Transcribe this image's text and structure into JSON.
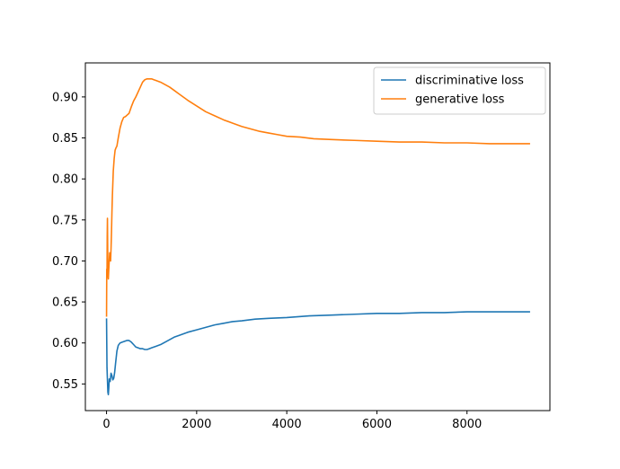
{
  "chart_data": {
    "type": "line",
    "title": "",
    "xlabel": "",
    "ylabel": "",
    "xlim": [
      -470,
      9840
    ],
    "ylim": [
      0.5175,
      0.9415
    ],
    "grid": false,
    "legend_position": "top-right",
    "x_ticks": [
      {
        "value": 0,
        "label": "0"
      },
      {
        "value": 2000,
        "label": "2000"
      },
      {
        "value": 4000,
        "label": "4000"
      },
      {
        "value": 6000,
        "label": "6000"
      },
      {
        "value": 8000,
        "label": "8000"
      }
    ],
    "y_ticks": [
      {
        "value": 0.55,
        "label": "0.55"
      },
      {
        "value": 0.6,
        "label": "0.60"
      },
      {
        "value": 0.65,
        "label": "0.65"
      },
      {
        "value": 0.7,
        "label": "0.70"
      },
      {
        "value": 0.75,
        "label": "0.75"
      },
      {
        "value": 0.8,
        "label": "0.80"
      },
      {
        "value": 0.85,
        "label": "0.85"
      },
      {
        "value": 0.9,
        "label": "0.90"
      }
    ],
    "series": [
      {
        "name": "discriminative loss",
        "color": "#1f77b4",
        "x": [
          0,
          10,
          20,
          30,
          40,
          50,
          60,
          80,
          100,
          120,
          140,
          160,
          180,
          200,
          230,
          260,
          300,
          350,
          400,
          450,
          500,
          550,
          600,
          650,
          700,
          750,
          800,
          850,
          900,
          950,
          1000,
          1100,
          1200,
          1300,
          1400,
          1500,
          1600,
          1800,
          2000,
          2200,
          2400,
          2600,
          2800,
          3000,
          3300,
          3600,
          4000,
          4500,
          5000,
          5500,
          6000,
          6500,
          7000,
          7500,
          8000,
          8500,
          9000,
          9400
        ],
        "y": [
          0.63,
          0.57,
          0.555,
          0.54,
          0.537,
          0.545,
          0.556,
          0.553,
          0.563,
          0.56,
          0.555,
          0.557,
          0.564,
          0.575,
          0.59,
          0.597,
          0.6,
          0.601,
          0.602,
          0.603,
          0.603,
          0.601,
          0.598,
          0.595,
          0.594,
          0.593,
          0.593,
          0.592,
          0.592,
          0.593,
          0.594,
          0.596,
          0.598,
          0.601,
          0.604,
          0.607,
          0.609,
          0.613,
          0.616,
          0.619,
          0.622,
          0.624,
          0.626,
          0.627,
          0.629,
          0.63,
          0.631,
          0.633,
          0.634,
          0.635,
          0.636,
          0.636,
          0.637,
          0.637,
          0.638,
          0.638,
          0.638,
          0.638
        ]
      },
      {
        "name": "generative loss",
        "color": "#ff7f0e",
        "x": [
          0,
          5,
          10,
          15,
          20,
          25,
          30,
          40,
          50,
          60,
          70,
          80,
          90,
          100,
          110,
          120,
          130,
          150,
          170,
          190,
          210,
          230,
          260,
          300,
          340,
          380,
          420,
          460,
          500,
          550,
          600,
          650,
          700,
          750,
          800,
          850,
          900,
          950,
          1000,
          1050,
          1100,
          1200,
          1300,
          1400,
          1500,
          1600,
          1700,
          1800,
          2000,
          2200,
          2400,
          2600,
          2800,
          3000,
          3200,
          3400,
          3600,
          3800,
          4000,
          4300,
          4600,
          5000,
          5500,
          6000,
          6500,
          7000,
          7500,
          8000,
          8500,
          9000,
          9400
        ],
        "y": [
          0.632,
          0.69,
          0.68,
          0.73,
          0.752,
          0.72,
          0.69,
          0.678,
          0.69,
          0.7,
          0.71,
          0.705,
          0.7,
          0.715,
          0.735,
          0.76,
          0.78,
          0.81,
          0.825,
          0.835,
          0.838,
          0.84,
          0.85,
          0.862,
          0.87,
          0.875,
          0.876,
          0.878,
          0.88,
          0.888,
          0.895,
          0.9,
          0.906,
          0.912,
          0.918,
          0.921,
          0.922,
          0.922,
          0.922,
          0.921,
          0.92,
          0.918,
          0.915,
          0.912,
          0.908,
          0.904,
          0.9,
          0.896,
          0.889,
          0.882,
          0.877,
          0.872,
          0.868,
          0.864,
          0.861,
          0.858,
          0.856,
          0.854,
          0.852,
          0.851,
          0.849,
          0.848,
          0.847,
          0.846,
          0.845,
          0.845,
          0.844,
          0.844,
          0.843,
          0.843,
          0.843
        ]
      }
    ]
  }
}
